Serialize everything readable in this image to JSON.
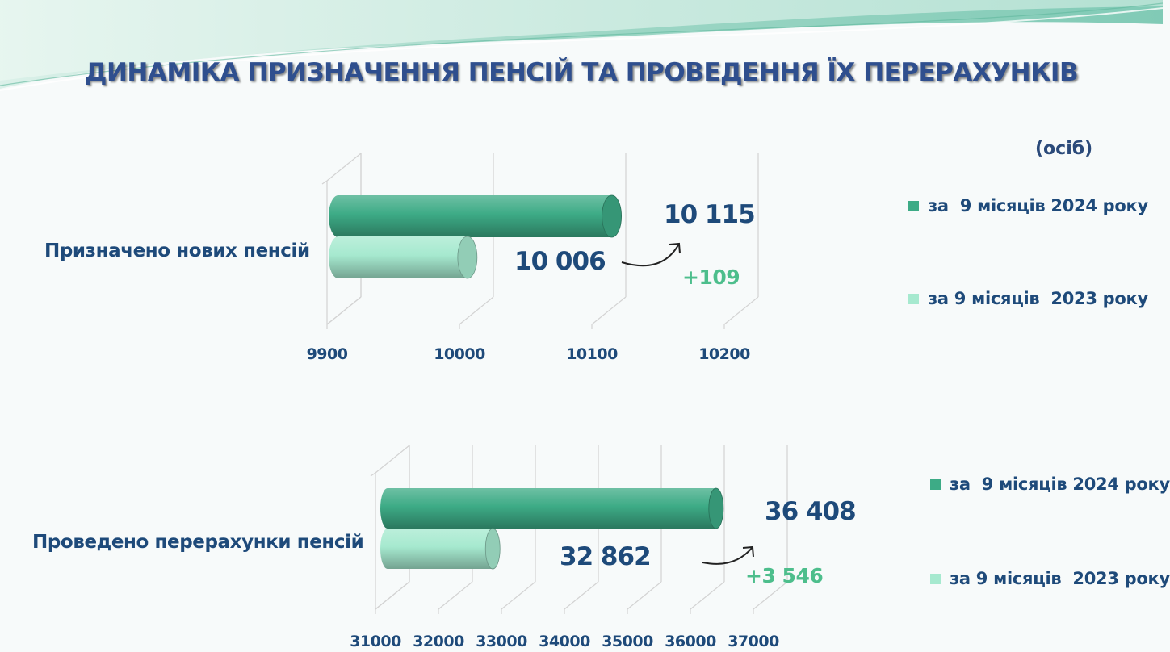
{
  "title": "ДИНАМІКА ПРИЗНАЧЕННЯ ПЕНСІЙ ТА ПРОВЕДЕННЯ ЇХ ПЕРЕРАХУНКІВ",
  "unit": "(осіб)",
  "colors": {
    "series_2024": "#3dab86",
    "series_2023": "#a6e9cf",
    "title": "#2f4f8e",
    "value_text": "#1e4a7a",
    "delta_text": "#4dbe8c"
  },
  "legend": [
    {
      "label": "за  9 місяців 2024 року",
      "color": "#3dab86"
    },
    {
      "label": "за 9 місяців  2023 року",
      "color": "#a6e9cf"
    }
  ],
  "chart_data": [
    {
      "type": "bar",
      "orientation": "horizontal",
      "style": "3d-cylinder",
      "categories": [
        "Призначено нових пенсій"
      ],
      "series": [
        {
          "name": "за  9 місяців 2024 року",
          "values": [
            10115
          ],
          "label": "10 115"
        },
        {
          "name": "за 9 місяців  2023 року",
          "values": [
            10006
          ],
          "label": "10 006"
        }
      ],
      "annotation": "+109",
      "xlim": [
        9900,
        10200
      ],
      "xticks": [
        9900,
        10000,
        10100,
        10200
      ],
      "xtick_labels": [
        "9900",
        "10000",
        "10100",
        "10200"
      ],
      "grid": true,
      "legend_position": "right"
    },
    {
      "type": "bar",
      "orientation": "horizontal",
      "style": "3d-cylinder",
      "categories": [
        "Проведено перерахунки пенсій"
      ],
      "series": [
        {
          "name": "за  9 місяців 2024 року",
          "values": [
            36408
          ],
          "label": "36 408"
        },
        {
          "name": "за 9 місяців  2023 року",
          "values": [
            32862
          ],
          "label": "32 862"
        }
      ],
      "annotation": "+3 546",
      "xlim": [
        31000,
        37000
      ],
      "xticks": [
        31000,
        32000,
        33000,
        34000,
        35000,
        36000,
        37000
      ],
      "xtick_labels": [
        "31000",
        "32000",
        "33000",
        "34000",
        "35000",
        "36000",
        "37000"
      ],
      "grid": true,
      "legend_position": "right"
    }
  ]
}
